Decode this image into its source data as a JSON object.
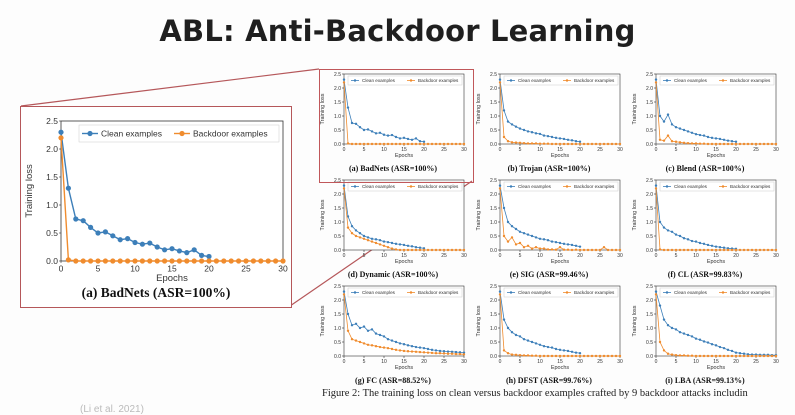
{
  "slide": {
    "title": "ABL: Anti-Backdoor Learning",
    "figure_caption": "Figure 2: The training loss on clean versus backdoor examples crafted by 9 backdoor attacks includin",
    "citation": "(Li et al. 2021)",
    "colors": {
      "clean": "#3d7fb9",
      "backdoor": "#f08c2e",
      "highlight": "#b5575a"
    }
  },
  "zoom": {
    "caption": "(a) BadNets (ASR=100%)",
    "ylabel": "Training loss",
    "xlabel": "Epochs",
    "legend": [
      "Clean examples",
      "Backdoor examples"
    ],
    "yticks": [
      "0.0",
      "0.5",
      "1.0",
      "1.5",
      "2.0",
      "2.5"
    ],
    "xticks": [
      "0",
      "5",
      "10",
      "15",
      "20",
      "25",
      "30"
    ]
  },
  "panel_labels": {
    "ylabel": "Training loss",
    "xlabel": "Epochs",
    "legend": [
      "Clean examples",
      "Backdoor examples"
    ],
    "xticks": [
      "0",
      "5",
      "10",
      "15",
      "20",
      "25",
      "30"
    ]
  },
  "chart_data": [
    {
      "type": "line",
      "caption": "(a) BadNets (ASR=100%)",
      "xlim": [
        0,
        30
      ],
      "ylim": [
        0,
        2.5
      ],
      "series": [
        {
          "name": "Clean examples",
          "x": [
            0,
            1,
            2,
            3,
            4,
            5,
            6,
            7,
            8,
            9,
            10,
            11,
            12,
            13,
            14,
            15,
            16,
            17,
            18,
            19,
            20
          ],
          "values": [
            2.3,
            1.3,
            0.75,
            0.72,
            0.6,
            0.5,
            0.52,
            0.45,
            0.38,
            0.4,
            0.33,
            0.3,
            0.32,
            0.25,
            0.2,
            0.22,
            0.18,
            0.15,
            0.2,
            0.1,
            0.08
          ]
        },
        {
          "name": "Backdoor examples",
          "x": [
            0,
            1,
            2,
            3,
            4,
            5,
            6,
            7,
            8,
            9,
            10,
            11,
            12,
            13,
            14,
            15,
            16,
            17,
            18,
            19,
            20,
            21,
            22,
            23,
            24,
            25,
            26,
            27,
            28,
            29,
            30
          ],
          "values": [
            2.2,
            0.02,
            0,
            0,
            0,
            0,
            0,
            0,
            0,
            0,
            0,
            0,
            0,
            0,
            0,
            0,
            0,
            0,
            0,
            0,
            0,
            0,
            0,
            0,
            0,
            0,
            0,
            0,
            0,
            0,
            0
          ]
        }
      ]
    },
    {
      "type": "line",
      "caption": "(b) Trojan (ASR=100%)",
      "xlim": [
        0,
        30
      ],
      "ylim": [
        0,
        2.5
      ],
      "series": [
        {
          "name": "Clean examples",
          "values": [
            2.3,
            1.2,
            0.8,
            0.7,
            0.62,
            0.55,
            0.5,
            0.45,
            0.42,
            0.38,
            0.36,
            0.3,
            0.28,
            0.25,
            0.22,
            0.2,
            0.18,
            0.15,
            0.13,
            0.1,
            0.08
          ]
        },
        {
          "name": "Backdoor examples",
          "values": [
            2.2,
            0.25,
            0.1,
            0.06,
            0.05,
            0.04,
            0.03,
            0.02,
            0.02,
            0.02,
            0.01,
            0.01,
            0.01,
            0,
            0,
            0,
            0,
            0,
            0,
            0,
            0,
            0,
            0,
            0,
            0,
            0,
            0,
            0,
            0,
            0,
            0
          ]
        }
      ]
    },
    {
      "type": "line",
      "caption": "(c) Blend (ASR=100%)",
      "xlim": [
        0,
        30
      ],
      "ylim": [
        0,
        2.5
      ],
      "series": [
        {
          "name": "Clean examples",
          "values": [
            2.3,
            1.0,
            0.8,
            1.05,
            0.7,
            0.6,
            0.55,
            0.5,
            0.45,
            0.4,
            0.35,
            0.32,
            0.3,
            0.25,
            0.22,
            0.2,
            0.18,
            0.15,
            0.12,
            0.1,
            0.08
          ]
        },
        {
          "name": "Backdoor examples",
          "values": [
            2.2,
            0.15,
            0.12,
            0.3,
            0.1,
            0.08,
            0.06,
            0.04,
            0.03,
            0.02,
            0.02,
            0.01,
            0.01,
            0,
            0,
            0,
            0,
            0,
            0,
            0,
            0,
            0,
            0,
            0,
            0,
            0,
            0,
            0,
            0,
            0,
            0
          ]
        }
      ]
    },
    {
      "type": "line",
      "caption": "(d) Dynamic (ASR=100%)",
      "xlim": [
        0,
        30
      ],
      "ylim": [
        0,
        2.5
      ],
      "series": [
        {
          "name": "Clean examples",
          "values": [
            2.3,
            1.2,
            0.85,
            0.7,
            0.6,
            0.5,
            0.45,
            0.4,
            0.38,
            0.35,
            0.3,
            0.28,
            0.25,
            0.22,
            0.2,
            0.18,
            0.15,
            0.13,
            0.1,
            0.08,
            0.06
          ]
        },
        {
          "name": "Backdoor examples",
          "values": [
            2.2,
            0.8,
            0.6,
            0.5,
            0.45,
            0.4,
            0.35,
            0.3,
            0.25,
            0.2,
            0.15,
            0.1,
            0.05,
            0.02,
            0,
            0,
            0,
            0,
            0,
            0,
            0,
            0,
            0,
            0,
            0,
            0,
            0,
            0,
            0,
            0,
            0
          ]
        }
      ]
    },
    {
      "type": "line",
      "caption": "(e) SIG (ASR=99.46%)",
      "xlim": [
        0,
        30
      ],
      "ylim": [
        0,
        2.5
      ],
      "series": [
        {
          "name": "Clean examples",
          "values": [
            2.3,
            1.5,
            1.0,
            0.85,
            0.75,
            0.65,
            0.6,
            0.55,
            0.5,
            0.45,
            0.4,
            0.38,
            0.35,
            0.3,
            0.28,
            0.25,
            0.22,
            0.2,
            0.18,
            0.15,
            0.12
          ]
        },
        {
          "name": "Backdoor examples",
          "values": [
            2.2,
            0.5,
            0.3,
            0.45,
            0.2,
            0.25,
            0.1,
            0.15,
            0.05,
            0.1,
            0.05,
            0.05,
            0.02,
            0.02,
            0.01,
            0.1,
            0.01,
            0.01,
            0,
            0.01,
            0,
            0,
            0,
            0,
            0,
            0,
            0.1,
            0,
            0,
            0,
            0
          ]
        }
      ]
    },
    {
      "type": "line",
      "caption": "(f) CL (ASR=99.83%)",
      "xlim": [
        0,
        30
      ],
      "ylim": [
        0,
        2.5
      ],
      "series": [
        {
          "name": "Clean examples",
          "values": [
            2.3,
            1.0,
            0.8,
            0.7,
            0.65,
            0.55,
            0.5,
            0.42,
            0.38,
            0.32,
            0.3,
            0.25,
            0.22,
            0.18,
            0.15,
            0.12,
            0.1,
            0.08,
            0.06,
            0.05,
            0.04
          ]
        },
        {
          "name": "Backdoor examples",
          "values": [
            2.2,
            0.02,
            0,
            0,
            0,
            0,
            0,
            0,
            0,
            0,
            0,
            0,
            0,
            0,
            0,
            0,
            0,
            0,
            0,
            0,
            0,
            0,
            0,
            0,
            0,
            0,
            0,
            0,
            0,
            0,
            0
          ]
        }
      ]
    },
    {
      "type": "line",
      "caption": "(g) FC (ASR=88.52%)",
      "xlim": [
        0,
        30
      ],
      "ylim": [
        0,
        2.5
      ],
      "series": [
        {
          "name": "Clean examples",
          "x": [
            0,
            1,
            2,
            3,
            4,
            5,
            6,
            7,
            8,
            9,
            10,
            11,
            12,
            13,
            14,
            15,
            16,
            17,
            18,
            19,
            20,
            21,
            22,
            23,
            24,
            25,
            26,
            27,
            28,
            29,
            30
          ],
          "values": [
            2.3,
            1.5,
            1.1,
            1.15,
            1.0,
            1.05,
            0.9,
            0.95,
            0.8,
            0.75,
            0.7,
            0.6,
            0.55,
            0.5,
            0.45,
            0.42,
            0.38,
            0.35,
            0.32,
            0.3,
            0.28,
            0.25,
            0.22,
            0.2,
            0.18,
            0.17,
            0.16,
            0.15,
            0.14,
            0.13,
            0.12
          ]
        },
        {
          "name": "Backdoor examples",
          "values": [
            2.2,
            0.9,
            0.6,
            0.55,
            0.5,
            0.45,
            0.4,
            0.38,
            0.35,
            0.32,
            0.3,
            0.28,
            0.25,
            0.22,
            0.2,
            0.18,
            0.17,
            0.16,
            0.15,
            0.14,
            0.13,
            0.12,
            0.11,
            0.1,
            0.1,
            0.09,
            0.08,
            0.08,
            0.07,
            0.07,
            0.06
          ]
        }
      ]
    },
    {
      "type": "line",
      "caption": "(h) DFST (ASR=99.76%)",
      "xlim": [
        0,
        30
      ],
      "ylim": [
        0,
        2.5
      ],
      "series": [
        {
          "name": "Clean examples",
          "values": [
            2.3,
            1.3,
            1.0,
            0.85,
            0.75,
            0.7,
            0.6,
            0.55,
            0.5,
            0.45,
            0.4,
            0.35,
            0.32,
            0.3,
            0.25,
            0.22,
            0.2,
            0.18,
            0.15,
            0.12,
            0.1
          ]
        },
        {
          "name": "Backdoor examples",
          "values": [
            2.2,
            0.2,
            0.1,
            0.05,
            0.04,
            0.03,
            0.02,
            0.02,
            0.01,
            0.01,
            0,
            0,
            0,
            0,
            0,
            0,
            0,
            0,
            0,
            0,
            0,
            0,
            0,
            0,
            0,
            0,
            0,
            0,
            0,
            0,
            0
          ]
        }
      ]
    },
    {
      "type": "line",
      "caption": "(i) LBA (ASR=99.13%)",
      "xlim": [
        0,
        30
      ],
      "ylim": [
        0,
        2.5
      ],
      "series": [
        {
          "name": "Clean examples",
          "x": [
            0,
            1,
            2,
            3,
            4,
            5,
            6,
            7,
            8,
            9,
            10,
            11,
            12,
            13,
            14,
            15,
            16,
            17,
            18,
            19,
            20,
            21,
            22,
            23,
            24,
            25,
            26,
            27,
            28,
            29,
            30
          ],
          "values": [
            2.3,
            1.8,
            1.3,
            1.1,
            1.0,
            0.95,
            0.85,
            0.8,
            0.75,
            0.7,
            0.62,
            0.58,
            0.52,
            0.48,
            0.42,
            0.38,
            0.32,
            0.28,
            0.22,
            0.18,
            0.12,
            0.1,
            0.08,
            0.06,
            0.05,
            0.05,
            0.04,
            0.04,
            0.04,
            0.03,
            0.03
          ]
        },
        {
          "name": "Backdoor examples",
          "values": [
            2.2,
            0.5,
            0.2,
            0.08,
            0.05,
            0.03,
            0.02,
            0.02,
            0.01,
            0.01,
            0,
            0,
            0,
            0,
            0,
            0,
            0,
            0,
            0,
            0,
            0,
            0,
            0,
            0,
            0,
            0,
            0,
            0,
            0,
            0,
            0
          ]
        }
      ]
    }
  ]
}
